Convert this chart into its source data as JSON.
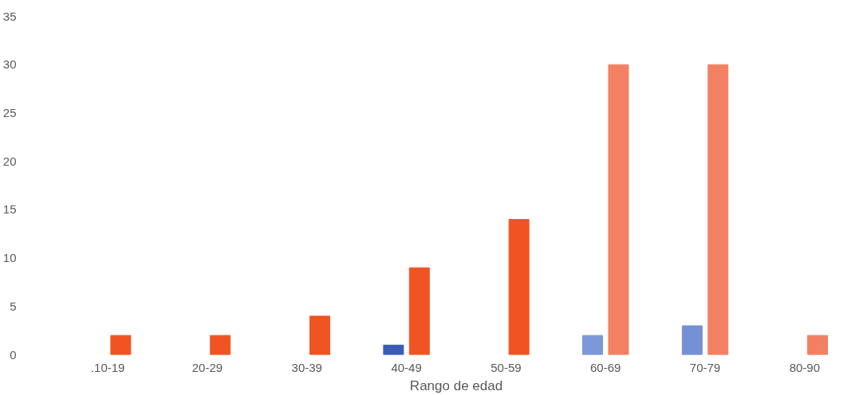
{
  "chart_data": {
    "type": "bar",
    "xlabel": "Rango de edad",
    "categories": [
      ".10-19",
      "20-29",
      "30-39",
      "40-49",
      "50-59",
      "60-69",
      "70-79",
      "80-90"
    ],
    "series": [
      {
        "colors": [
          "#4062c0",
          "#4062c0",
          "#4062c0",
          "#3a5bb8",
          "#4062c0",
          "#7b98d8",
          "#7590d4",
          "#4062c0"
        ],
        "values": [
          null,
          null,
          null,
          1,
          null,
          2,
          3,
          null
        ]
      },
      {
        "colors": [
          "#f05423",
          "#f05423",
          "#f05423",
          "#f05423",
          "#f05423",
          "#f38062",
          "#f38062",
          "#f38062"
        ],
        "values": [
          2,
          2,
          4,
          9,
          14,
          30,
          30,
          2
        ]
      }
    ],
    "ylim": [
      0,
      35
    ],
    "yticks": [
      0,
      5,
      10,
      15,
      20,
      25,
      30,
      35
    ],
    "grid": false
  }
}
